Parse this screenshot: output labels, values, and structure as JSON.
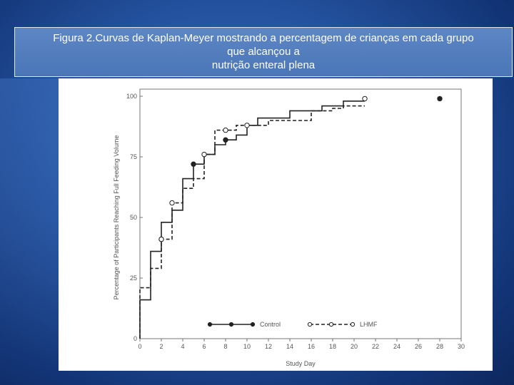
{
  "caption": {
    "lines": [
      "Figura 2.Curvas de Kaplan-Meyer mostrando a percentagem de crianças em cada grupo",
      "que alcançou a",
      "nutrição enteral plena"
    ]
  },
  "chart_data": {
    "type": "line",
    "title": "",
    "xlabel": "Study Day",
    "ylabel": "Percentage of Participants Reaching Full Feeding Volume",
    "xlim": [
      0,
      30
    ],
    "ylim": [
      0,
      100
    ],
    "x_ticks": [
      "0",
      "2",
      "4",
      "6",
      "8",
      "10",
      "12",
      "14",
      "16",
      "18",
      "20",
      "22",
      "24",
      "26",
      "28",
      "30"
    ],
    "y_ticks": [
      "0",
      "25",
      "50",
      "75",
      "100"
    ],
    "legend_placement": "bottom",
    "grid": false,
    "series": [
      {
        "name": "Control",
        "line_style": "solid",
        "marker": "filled-circle",
        "steps": [
          [
            0,
            0
          ],
          [
            0,
            16
          ],
          [
            1,
            16
          ],
          [
            1,
            36
          ],
          [
            2,
            36
          ],
          [
            2,
            48
          ],
          [
            3,
            48
          ],
          [
            3,
            53
          ],
          [
            4,
            53
          ],
          [
            4,
            66
          ],
          [
            5,
            66
          ],
          [
            5,
            72
          ],
          [
            6,
            72
          ],
          [
            6,
            76
          ],
          [
            7,
            76
          ],
          [
            7,
            80
          ],
          [
            8,
            80
          ],
          [
            8,
            82
          ],
          [
            9,
            82
          ],
          [
            9,
            84
          ],
          [
            10,
            84
          ],
          [
            10,
            88
          ],
          [
            11,
            88
          ],
          [
            11,
            91
          ],
          [
            14,
            91
          ],
          [
            14,
            94
          ],
          [
            17,
            94
          ],
          [
            17,
            96
          ],
          [
            19,
            96
          ],
          [
            19,
            98
          ],
          [
            21,
            98
          ]
        ],
        "censored": [
          [
            2,
            41
          ],
          [
            5,
            72
          ],
          [
            8,
            82
          ],
          [
            28,
            99
          ]
        ]
      },
      {
        "name": "LHMF",
        "line_style": "dashed",
        "marker": "open-circle",
        "steps": [
          [
            0,
            0
          ],
          [
            0,
            21
          ],
          [
            1,
            21
          ],
          [
            1,
            29
          ],
          [
            2,
            29
          ],
          [
            2,
            41
          ],
          [
            3,
            41
          ],
          [
            3,
            56
          ],
          [
            4,
            56
          ],
          [
            4,
            62
          ],
          [
            5,
            62
          ],
          [
            5,
            66
          ],
          [
            6,
            66
          ],
          [
            6,
            76
          ],
          [
            7,
            76
          ],
          [
            7,
            86
          ],
          [
            8,
            86
          ],
          [
            8,
            86
          ],
          [
            9,
            86
          ],
          [
            9,
            88
          ],
          [
            12,
            88
          ],
          [
            12,
            90
          ],
          [
            16,
            90
          ],
          [
            16,
            94
          ],
          [
            18,
            94
          ],
          [
            18,
            95
          ],
          [
            19,
            95
          ],
          [
            19,
            96
          ],
          [
            21,
            96
          ]
        ],
        "censored": [
          [
            2,
            41
          ],
          [
            3,
            56
          ],
          [
            6,
            76
          ],
          [
            8,
            86
          ],
          [
            10,
            88
          ],
          [
            21,
            99
          ]
        ]
      }
    ]
  }
}
